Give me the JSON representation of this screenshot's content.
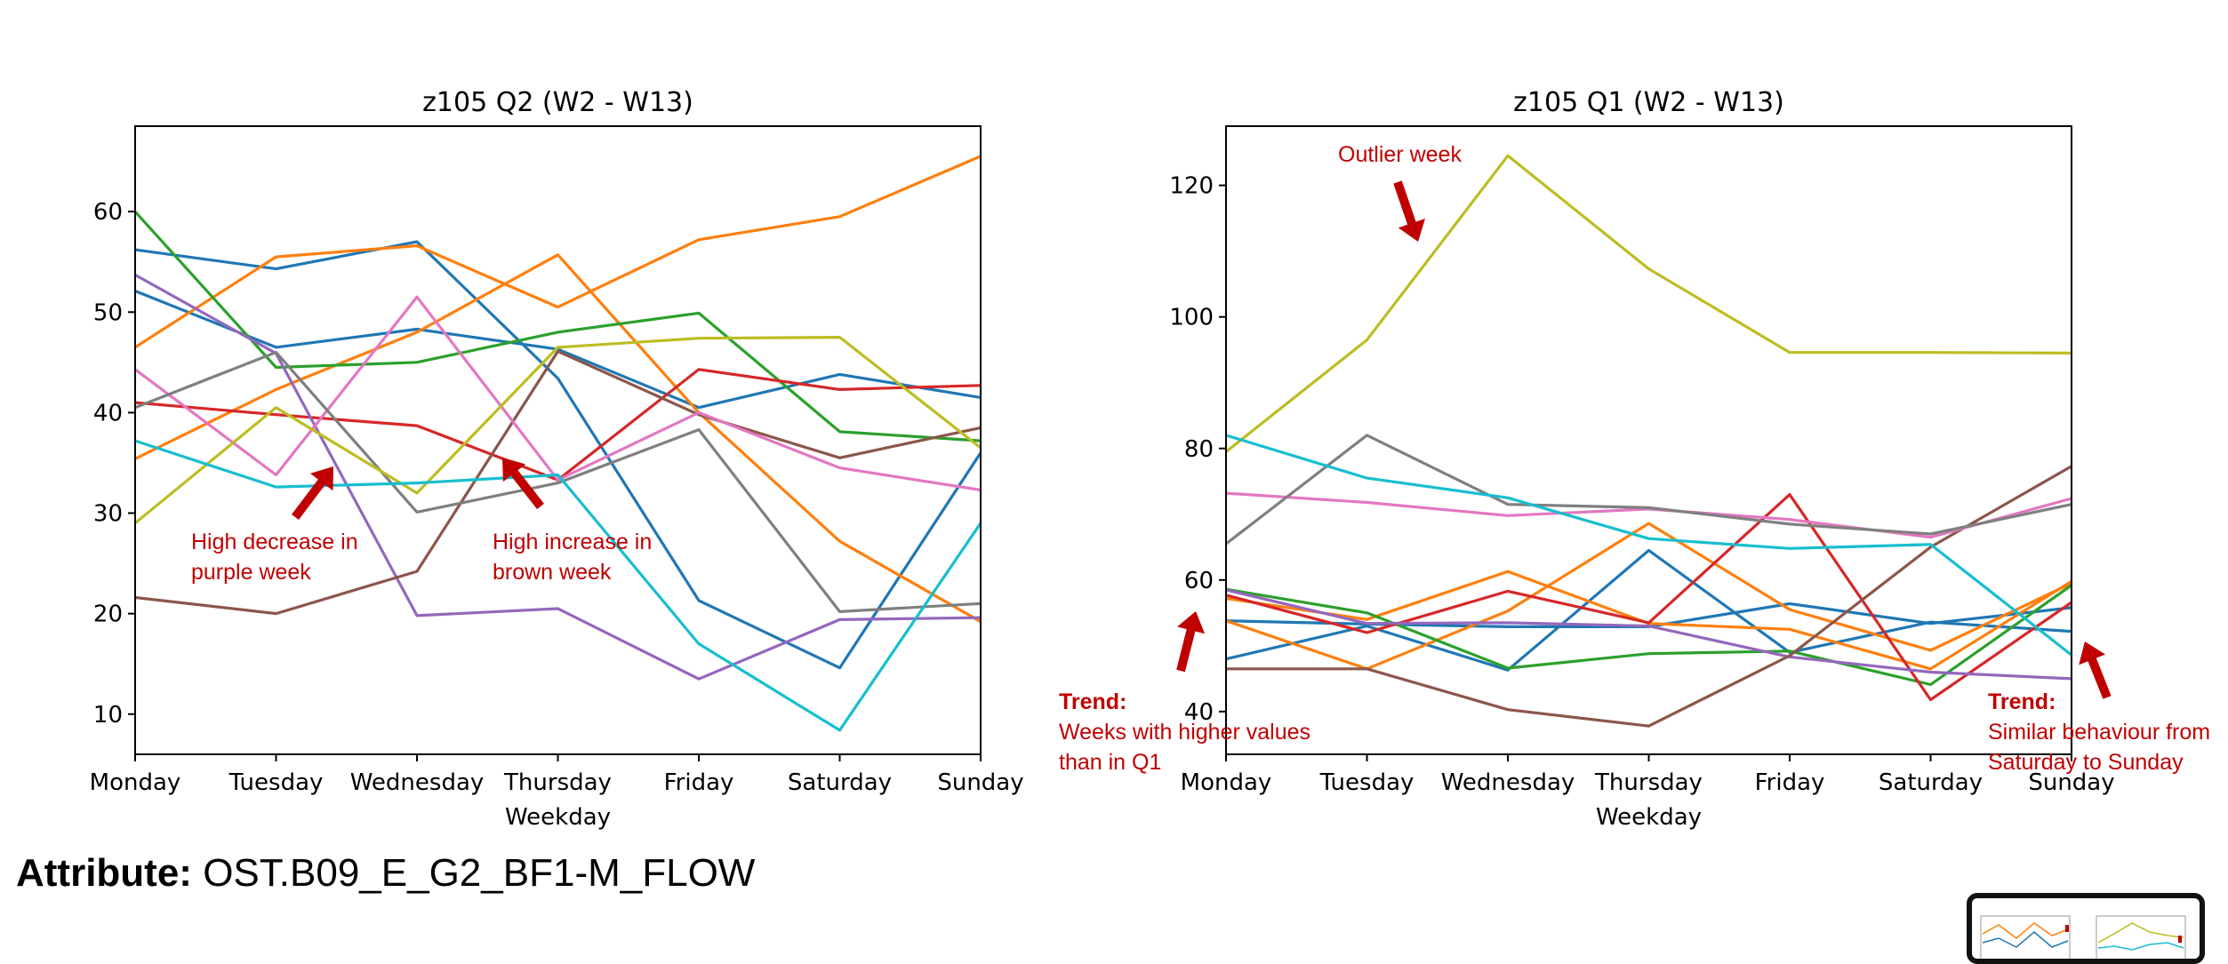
{
  "attribute": {
    "label": "Attribute:",
    "value": "OST.B09_E_G2_BF1-M_FLOW"
  },
  "chart_data": [
    {
      "type": "line",
      "title": "z105 Q2 (W2 - W13)",
      "xlabel": "Weekday",
      "ylabel": "",
      "categories": [
        "Monday",
        "Tuesday",
        "Wednesday",
        "Thursday",
        "Friday",
        "Saturday",
        "Sunday"
      ],
      "ylim": [
        6,
        68.5
      ],
      "yticks": [
        10,
        20,
        30,
        40,
        50,
        60
      ],
      "grid": false,
      "series": [
        {
          "color": "#1f77b4",
          "values": [
            56.2,
            54.3,
            57.0,
            43.4,
            21.3,
            14.6,
            36.0
          ]
        },
        {
          "color": "#1f77b4",
          "values": [
            52.1,
            46.5,
            48.3,
            46.3,
            40.5,
            43.8,
            41.5
          ]
        },
        {
          "color": "#ff7f0e",
          "values": [
            46.5,
            55.5,
            56.6,
            50.5,
            57.2,
            59.5,
            65.5
          ]
        },
        {
          "color": "#ff7f0e",
          "values": [
            35.4,
            42.3,
            48.0,
            55.7,
            40.0,
            27.2,
            19.2
          ]
        },
        {
          "color": "#2ca02c",
          "values": [
            60.0,
            44.5,
            45.0,
            48.0,
            49.9,
            38.1,
            37.2
          ]
        },
        {
          "color": "#d62728",
          "values": [
            41.0,
            39.8,
            38.7,
            33.3,
            44.3,
            42.3,
            42.7
          ]
        },
        {
          "color": "#9467bd",
          "values": [
            53.7,
            45.9,
            19.8,
            20.5,
            13.5,
            19.4,
            19.6
          ]
        },
        {
          "color": "#8c564b",
          "values": [
            21.6,
            20.0,
            24.2,
            46.1,
            39.8,
            35.5,
            38.5
          ]
        },
        {
          "color": "#e377c2",
          "values": [
            44.3,
            33.8,
            51.5,
            33.3,
            40.0,
            34.5,
            32.3
          ]
        },
        {
          "color": "#7f7f7f",
          "values": [
            40.5,
            46.0,
            30.1,
            33.0,
            38.3,
            20.2,
            21.0
          ]
        },
        {
          "color": "#bcbd22",
          "values": [
            29.0,
            40.5,
            32.0,
            46.5,
            47.4,
            47.5,
            36.5
          ]
        },
        {
          "color": "#17becf",
          "values": [
            37.2,
            32.6,
            33.0,
            33.8,
            17.0,
            8.4,
            29.0
          ]
        }
      ],
      "annotations": [
        {
          "text": [
            "High decrease in",
            "purple week"
          ],
          "color": "#c00000"
        },
        {
          "text": [
            "High increase in",
            "brown week"
          ],
          "color": "#c00000"
        }
      ]
    },
    {
      "type": "line",
      "title": "z105 Q1 (W2 - W13)",
      "xlabel": "Weekday",
      "ylabel": "",
      "categories": [
        "Monday",
        "Tuesday",
        "Wednesday",
        "Thursday",
        "Friday",
        "Saturday",
        "Sunday"
      ],
      "ylim": [
        33.5,
        129
      ],
      "yticks": [
        40,
        60,
        80,
        100,
        120
      ],
      "grid": false,
      "series": [
        {
          "color": "#1f77b4",
          "values": [
            53.8,
            53.3,
            52.9,
            52.9,
            56.4,
            53.4,
            55.8
          ]
        },
        {
          "color": "#1f77b4",
          "values": [
            48.0,
            53.0,
            46.3,
            64.5,
            49.0,
            53.6,
            52.2
          ]
        },
        {
          "color": "#ff7f0e",
          "values": [
            57.2,
            54.0,
            61.3,
            53.4,
            52.5,
            46.5,
            59.8
          ]
        },
        {
          "color": "#ff7f0e",
          "values": [
            53.8,
            46.5,
            55.3,
            68.6,
            55.5,
            49.3,
            59.5
          ]
        },
        {
          "color": "#2ca02c",
          "values": [
            58.6,
            55.0,
            46.6,
            48.8,
            49.2,
            44.1,
            59.2
          ]
        },
        {
          "color": "#d62728",
          "values": [
            57.7,
            52.0,
            58.3,
            53.5,
            73.0,
            41.8,
            56.6
          ]
        },
        {
          "color": "#9467bd",
          "values": [
            58.5,
            53.4,
            53.5,
            53.0,
            48.3,
            46.0,
            45.0
          ]
        },
        {
          "color": "#8c564b",
          "values": [
            46.5,
            46.5,
            40.3,
            37.8,
            48.5,
            65.0,
            77.3
          ]
        },
        {
          "color": "#e377c2",
          "values": [
            73.2,
            71.8,
            69.8,
            70.8,
            69.2,
            66.5,
            72.4
          ]
        },
        {
          "color": "#7f7f7f",
          "values": [
            65.5,
            82.0,
            71.5,
            71.0,
            68.5,
            67.0,
            71.5
          ]
        },
        {
          "color": "#bcbd22",
          "values": [
            79.5,
            96.5,
            124.5,
            107.3,
            94.6,
            94.6,
            94.5
          ]
        },
        {
          "color": "#17becf",
          "values": [
            82.0,
            75.5,
            72.5,
            66.3,
            64.8,
            65.4,
            48.6
          ]
        }
      ],
      "annotations": [
        {
          "text": [
            "Outlier week"
          ],
          "color": "#c00000"
        },
        {
          "text": [
            "Weeks with higher values",
            "than in Q1"
          ],
          "title": "Trend:",
          "color": "#c00000"
        },
        {
          "text": [
            "Similar behaviour from",
            "Saturday to Sunday"
          ],
          "title": "Trend:",
          "color": "#c00000"
        }
      ]
    }
  ]
}
